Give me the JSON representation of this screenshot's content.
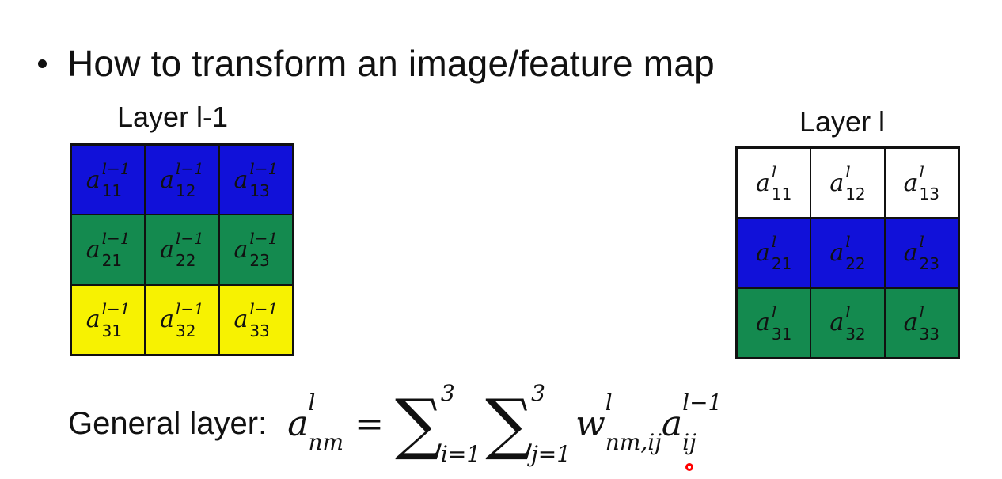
{
  "slide": {
    "heading": "How to transform an image/feature map",
    "left_title": "Layer l-1",
    "right_title": "Layer l"
  },
  "colors": {
    "blue": "#1111d9",
    "green": "#148a4f",
    "yellow": "#f7f201",
    "white": "#ffffff",
    "cursor": "#ff0000"
  },
  "left_grid": {
    "superscript": "l−1",
    "rows": [
      {
        "color": "blue",
        "cells": [
          "11",
          "12",
          "13"
        ]
      },
      {
        "color": "green",
        "cells": [
          "21",
          "22",
          "23"
        ]
      },
      {
        "color": "yellow",
        "cells": [
          "31",
          "32",
          "33"
        ]
      }
    ]
  },
  "right_grid": {
    "superscript": "l",
    "rows": [
      {
        "color": "white",
        "cells": [
          "11",
          "12",
          "13"
        ]
      },
      {
        "color": "blue",
        "cells": [
          "21",
          "22",
          "23"
        ]
      },
      {
        "color": "green",
        "cells": [
          "31",
          "32",
          "33"
        ]
      }
    ]
  },
  "formula": {
    "label": "General layer:",
    "lhs_symbol": "a",
    "lhs_sup": "l",
    "lhs_sub": "nm",
    "equals": "=",
    "sum1_lower": "i=1",
    "sum1_upper": "3",
    "sum2_lower": "j=1",
    "sum2_upper": "3",
    "w_symbol": "w",
    "w_sup": "l",
    "w_sub": "nm,ij",
    "a_symbol": "a",
    "a_sup": "l−1",
    "a_sub": "ij"
  }
}
